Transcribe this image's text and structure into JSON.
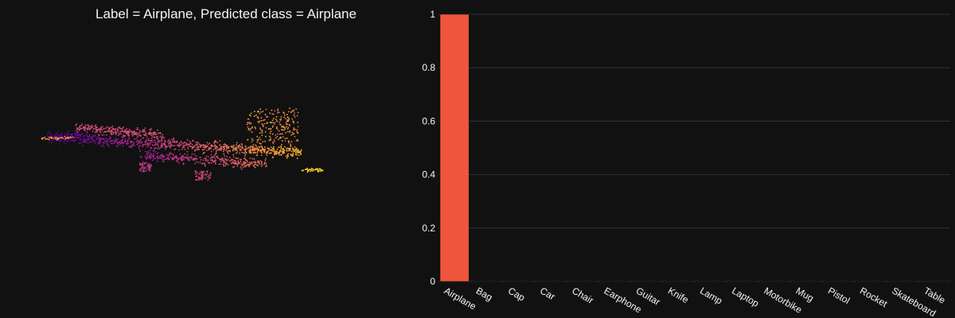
{
  "title": "Label = Airplane, Predicted class = Airplane",
  "colors": {
    "background": "#111111",
    "bar": "#ef553b",
    "grid": "#283442",
    "text": "#f2f5fa",
    "point_palette": [
      "#0d0887",
      "#6a00a8",
      "#b12a90",
      "#e16462",
      "#fca636",
      "#f0f921"
    ]
  },
  "chart_data": [
    {
      "type": "scatter",
      "title": "Label = Airplane, Predicted class = Airplane",
      "description_of_marks": "point cloud of an airplane, colored by depth",
      "grid": false
    },
    {
      "type": "bar",
      "categories": [
        "Airplane",
        "Bag",
        "Cap",
        "Car",
        "Chair",
        "Earphone",
        "Guitar",
        "Knife",
        "Lamp",
        "Laptop",
        "Motorbike",
        "Mug",
        "Pistol",
        "Rocket",
        "Skateboard",
        "Table"
      ],
      "values": [
        1,
        0,
        0,
        0,
        0,
        0,
        0,
        0,
        0,
        0,
        0,
        0,
        0,
        0,
        0,
        0
      ],
      "yticks": [
        "0",
        "0.2",
        "0.4",
        "0.6",
        "0.8",
        "1"
      ],
      "ylim": [
        0,
        1
      ],
      "xlabel": "",
      "ylabel": "",
      "grid": true
    }
  ]
}
